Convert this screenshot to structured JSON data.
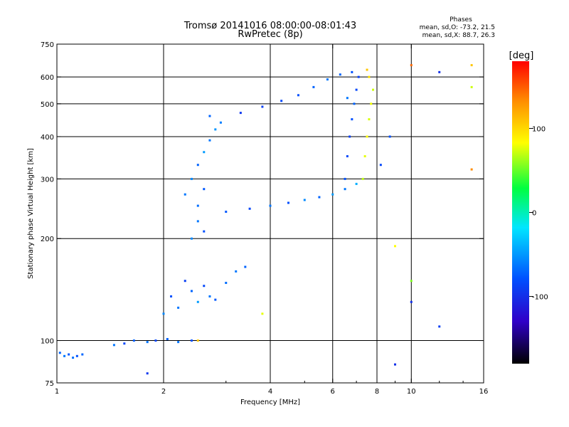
{
  "chart_data": {
    "type": "scatter",
    "title": "Tromsø 20141016 08:00:00-08:01:43",
    "subtitle": "RwPretec (8p)",
    "xlabel": "Frequency [MHz]",
    "ylabel": "Stationary phase Virtual Height [km]",
    "xscale": "log",
    "yscale": "log",
    "xlim": [
      1,
      16
    ],
    "ylim": [
      75,
      750
    ],
    "x_ticks": [
      1,
      2,
      4,
      6,
      8,
      10,
      16
    ],
    "x_tick_labels": [
      "1",
      "2",
      "4",
      "6",
      "8",
      "10",
      "16"
    ],
    "y_ticks": [
      75,
      100,
      200,
      300,
      400,
      500,
      600,
      750
    ],
    "y_tick_labels": [
      "75",
      "100",
      "200",
      "300",
      "400",
      "500",
      "600",
      "750"
    ],
    "x_grid": [
      2,
      4,
      6,
      8,
      10
    ],
    "y_grid": [
      100,
      200,
      300,
      400,
      500,
      600
    ],
    "grid": true,
    "stats": {
      "heading": "Phases",
      "line_o": "mean, sd,O: -73.2, 21.5",
      "line_x": "mean, sd,X:  88.7, 26.3"
    },
    "colorbar": {
      "title": "[deg]",
      "range": [
        -180,
        180
      ],
      "ticks": [
        100,
        0,
        -100
      ],
      "tick_labels": [
        "100",
        "0",
        "-100"
      ],
      "colormap": "rainbow"
    },
    "series": [
      {
        "points": [
          [
            1.02,
            92,
            -75
          ],
          [
            1.05,
            90,
            -70
          ],
          [
            1.08,
            91,
            -78
          ],
          [
            1.11,
            89,
            -72
          ],
          [
            1.14,
            90,
            -80
          ],
          [
            1.18,
            91,
            -74
          ]
        ]
      },
      {
        "points": [
          [
            1.45,
            97,
            -70
          ],
          [
            1.55,
            98,
            -85
          ],
          [
            1.65,
            100,
            -75
          ],
          [
            1.8,
            99,
            -70
          ],
          [
            1.9,
            100,
            -85
          ],
          [
            2.05,
            101,
            -75
          ],
          [
            2.2,
            99,
            -70
          ],
          [
            2.4,
            100,
            -80
          ]
        ]
      },
      {
        "points": [
          [
            2.0,
            120,
            -65
          ],
          [
            2.1,
            135,
            -80
          ],
          [
            2.2,
            125,
            -70
          ],
          [
            2.3,
            150,
            -90
          ],
          [
            2.4,
            140,
            -75
          ],
          [
            2.5,
            130,
            -60
          ],
          [
            2.6,
            145,
            -85
          ],
          [
            2.7,
            135,
            -70
          ],
          [
            2.8,
            132,
            -78
          ],
          [
            3.0,
            148,
            -72
          ],
          [
            3.2,
            160,
            -70
          ],
          [
            3.4,
            165,
            -75
          ],
          [
            2.4,
            200,
            -65
          ],
          [
            2.6,
            210,
            -80
          ],
          [
            2.5,
            225,
            -70
          ]
        ]
      },
      {
        "points": [
          [
            2.3,
            270,
            -70
          ],
          [
            2.4,
            300,
            -65
          ],
          [
            2.5,
            330,
            -75
          ],
          [
            2.6,
            360,
            -60
          ],
          [
            2.7,
            390,
            -70
          ],
          [
            2.8,
            420,
            -62
          ],
          [
            2.9,
            440,
            -68
          ],
          [
            2.7,
            460,
            -75
          ],
          [
            2.5,
            250,
            -72
          ],
          [
            2.6,
            280,
            -78
          ]
        ]
      },
      {
        "points": [
          [
            3.0,
            240,
            -78
          ],
          [
            3.5,
            245,
            -85
          ],
          [
            4.0,
            250,
            -70
          ],
          [
            4.5,
            255,
            -80
          ],
          [
            5.0,
            260,
            -65
          ],
          [
            5.5,
            265,
            -75
          ],
          [
            6.0,
            270,
            -60
          ],
          [
            6.5,
            280,
            -70
          ],
          [
            7.0,
            290,
            -55
          ]
        ]
      },
      {
        "points": [
          [
            3.3,
            470,
            -95
          ],
          [
            3.8,
            490,
            -90
          ],
          [
            4.3,
            510,
            -85
          ],
          [
            4.8,
            530,
            -80
          ],
          [
            5.3,
            560,
            -75
          ],
          [
            5.8,
            590,
            -70
          ],
          [
            6.3,
            610,
            -75
          ],
          [
            6.8,
            620,
            -80
          ]
        ]
      },
      {
        "points": [
          [
            6.5,
            300,
            -80
          ],
          [
            6.6,
            350,
            -85
          ],
          [
            6.7,
            400,
            -90
          ],
          [
            6.8,
            450,
            -80
          ],
          [
            6.9,
            500,
            -75
          ],
          [
            7.0,
            550,
            -85
          ],
          [
            7.1,
            600,
            -90
          ],
          [
            6.6,
            520,
            -70
          ]
        ]
      },
      {
        "points": [
          [
            7.3,
            300,
            75
          ],
          [
            7.4,
            350,
            90
          ],
          [
            7.5,
            400,
            100
          ],
          [
            7.6,
            450,
            85
          ],
          [
            7.7,
            500,
            95
          ],
          [
            7.8,
            550,
            80
          ],
          [
            7.6,
            600,
            110
          ],
          [
            7.5,
            630,
            120
          ]
        ]
      },
      {
        "points": [
          [
            9.0,
            190,
            100
          ],
          [
            10.0,
            130,
            -100
          ],
          [
            10.0,
            150,
            50
          ],
          [
            10.0,
            650,
            150
          ],
          [
            12.0,
            620,
            -100
          ],
          [
            12.0,
            110,
            -90
          ],
          [
            14.8,
            320,
            140
          ],
          [
            14.8,
            560,
            80
          ],
          [
            14.8,
            650,
            120
          ],
          [
            8.2,
            330,
            -85
          ],
          [
            8.7,
            400,
            -80
          ],
          [
            3.8,
            120,
            90
          ],
          [
            2.5,
            100,
            120
          ],
          [
            1.8,
            80,
            -95
          ],
          [
            9.0,
            85,
            -100
          ]
        ]
      }
    ]
  }
}
